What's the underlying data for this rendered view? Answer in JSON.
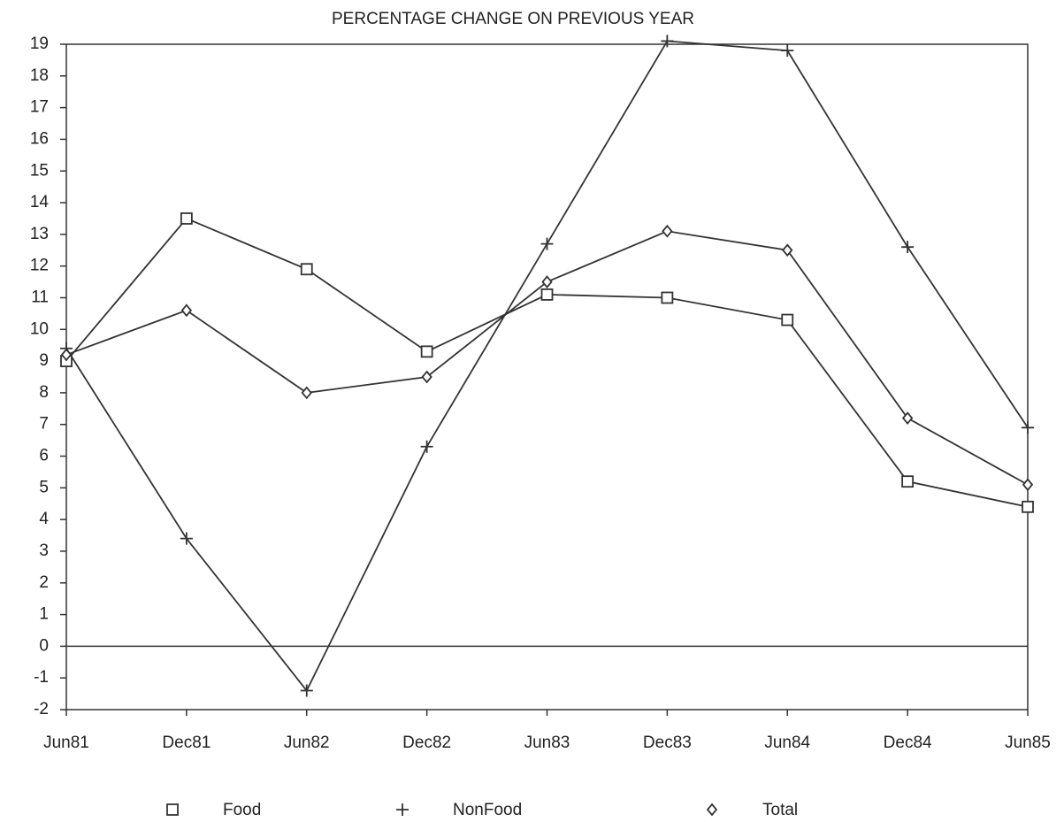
{
  "chart_data": {
    "type": "line",
    "title": "PERCENTAGE CHANGE ON PREVIOUS YEAR",
    "categories": [
      "Jun81",
      "Dec81",
      "Jun82",
      "Dec82",
      "Jun83",
      "Dec83",
      "Jun84",
      "Dec84",
      "Jun85"
    ],
    "series": [
      {
        "name": "Food",
        "color": "#333333",
        "marker": "square",
        "values": [
          9.0,
          13.5,
          11.9,
          9.3,
          11.1,
          11.0,
          10.3,
          5.2,
          4.4
        ]
      },
      {
        "name": "NonFood",
        "color": "#333333",
        "marker": "plus",
        "values": [
          9.4,
          3.4,
          -1.4,
          6.3,
          12.7,
          19.1,
          18.8,
          12.6,
          6.9
        ]
      },
      {
        "name": "Total",
        "color": "#333333",
        "marker": "diamond",
        "values": [
          9.2,
          10.6,
          8.0,
          8.5,
          11.5,
          13.1,
          12.5,
          7.2,
          5.1
        ]
      }
    ],
    "ylim": [
      -2,
      19
    ],
    "yticks": [
      -2,
      -1,
      0,
      1,
      2,
      3,
      4,
      5,
      6,
      7,
      8,
      9,
      10,
      11,
      12,
      13,
      14,
      15,
      16,
      17,
      18,
      19
    ],
    "grid": false
  }
}
